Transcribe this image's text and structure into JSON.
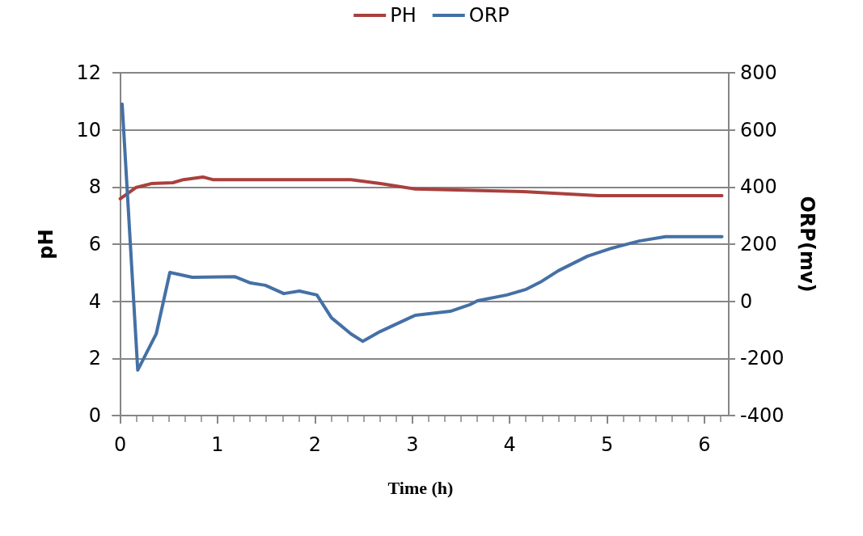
{
  "chart_data": {
    "type": "line",
    "xlabel": "Time (h)",
    "ylabel": "pH",
    "y2label": "ORP(mv)",
    "xlim": [
      -0.08,
      6.25
    ],
    "xticks": [
      0,
      1,
      2,
      3,
      4,
      5,
      6
    ],
    "ylim": [
      0,
      12
    ],
    "yticks": [
      0,
      2,
      4,
      6,
      8,
      10,
      12
    ],
    "y2lim": [
      -400,
      800
    ],
    "y2ticks": [
      -400,
      -200,
      0,
      200,
      400,
      600,
      800
    ],
    "grid": "y",
    "legend": "top",
    "marker": "none",
    "line_style": "solid",
    "series": [
      {
        "name": "PH",
        "color": "#a9403d",
        "x": [
          0,
          0.16,
          0.32,
          0.54,
          0.65,
          0.85,
          0.95,
          2.37,
          2.67,
          3.03,
          4.14,
          4.91,
          6.18
        ],
        "values": [
          7.59,
          7.98,
          8.12,
          8.15,
          8.26,
          8.35,
          8.26,
          8.26,
          8.12,
          7.93,
          7.84,
          7.7,
          7.7
        ]
      },
      {
        "name": "ORP",
        "color": "#4470a5",
        "axis": "y2",
        "x": [
          0.02,
          0.18,
          0.37,
          0.51,
          0.74,
          1.18,
          1.34,
          1.49,
          1.68,
          1.84,
          2.02,
          2.17,
          2.37,
          2.49,
          2.67,
          3.03,
          3.39,
          3.59,
          3.67,
          3.97,
          4.17,
          4.33,
          4.5,
          4.8,
          5.05,
          5.33,
          5.6,
          6.18
        ],
        "values": [
          690,
          -241,
          -114,
          101,
          84,
          86,
          64,
          56,
          27,
          36,
          22,
          -58,
          -114,
          -140,
          -106,
          -49,
          -35,
          -12,
          2,
          22,
          42,
          70,
          107,
          158,
          186,
          211,
          226,
          226
        ]
      }
    ]
  }
}
